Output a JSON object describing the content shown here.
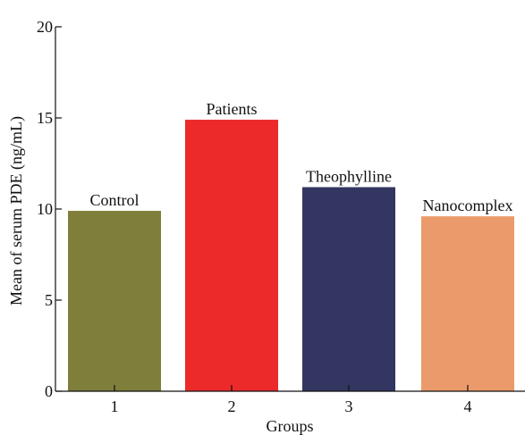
{
  "chart_data": {
    "type": "bar",
    "categories": [
      "1",
      "2",
      "3",
      "4"
    ],
    "values": [
      9.9,
      14.9,
      11.2,
      9.6
    ],
    "bar_labels": [
      "Control",
      "Patients",
      "Theophylline",
      "Nanocomplex"
    ],
    "title": "",
    "xlabel": "Groups",
    "ylabel": "Mean of serum PDE (ng/mL)",
    "ylim": [
      0,
      20
    ],
    "yticks": [
      0,
      5,
      10,
      15,
      20
    ],
    "grid": false,
    "legend": "none",
    "colors": [
      "#7f7f3b",
      "#ec2a2a",
      "#333660",
      "#eb9b6b"
    ]
  }
}
